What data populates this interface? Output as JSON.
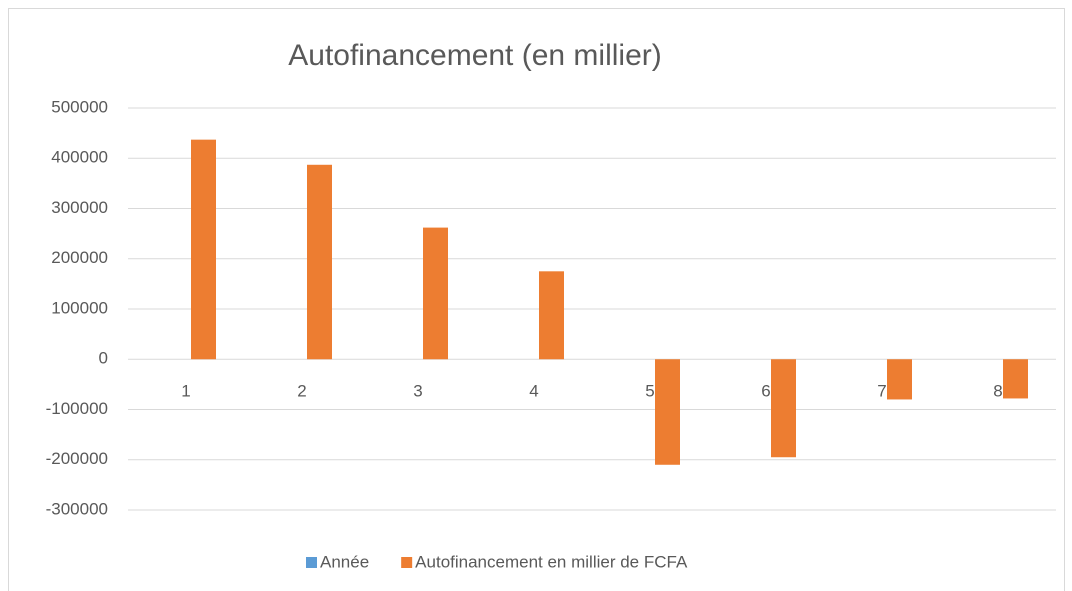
{
  "chart_data": {
    "type": "bar",
    "title": "Autofinancement (en millier)",
    "categories": [
      "1",
      "2",
      "3",
      "4",
      "5",
      "6",
      "7",
      "8"
    ],
    "series": [
      {
        "name": "Année",
        "color": "#5b9bd5",
        "values": [
          null,
          null,
          null,
          null,
          null,
          null,
          null,
          null
        ]
      },
      {
        "name": "Autofinancement en millier de FCFA",
        "color": "#ed7d31",
        "values": [
          437000,
          387000,
          262000,
          175000,
          -210000,
          -195000,
          -80000,
          -78000
        ]
      }
    ],
    "ylim": [
      -300000,
      500000
    ],
    "yticks": [
      -300000,
      -200000,
      -100000,
      0,
      100000,
      200000,
      300000,
      400000,
      500000
    ],
    "grid": true,
    "legend": "bottom"
  }
}
